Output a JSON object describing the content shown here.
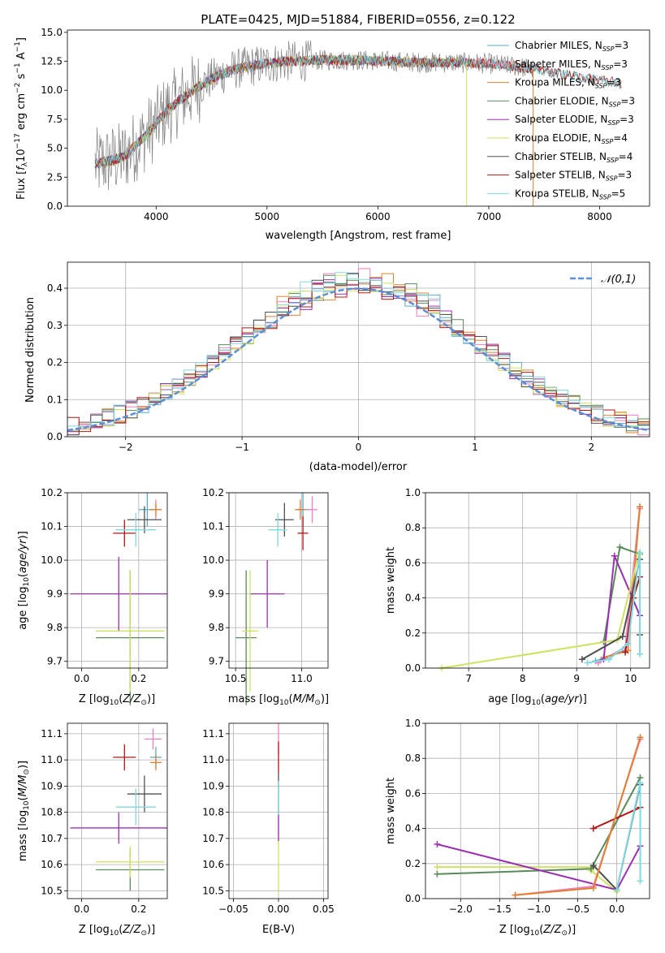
{
  "colors": {
    "chabrier_miles": "#5fa8c8",
    "salpeter_miles": "#f080c0",
    "kroupa_miles": "#e08030",
    "chabrier_elodie": "#5a8a5a",
    "salpeter_elodie": "#9a30b0",
    "kroupa_elodie": "#d0e060",
    "chabrier_stelib": "#505050",
    "salpeter_stelib": "#b01818",
    "kroupa_stelib": "#80d8e0",
    "normal": "#5a8fd8"
  },
  "legend_ssp": [
    {
      "label": "Chabrier MILES, N",
      "sub": "SSP",
      "suffix": "=3",
      "color": "chabrier_miles"
    },
    {
      "label": "Salpeter MILES, N",
      "sub": "SSP",
      "suffix": "=3",
      "color": "salpeter_miles"
    },
    {
      "label": "Kroupa MILES, N",
      "sub": "SSP",
      "suffix": "=3",
      "color": "kroupa_miles"
    },
    {
      "label": "Chabrier ELODIE, N",
      "sub": "SSP",
      "suffix": "=3",
      "color": "chabrier_elodie"
    },
    {
      "label": "Salpeter ELODIE, N",
      "sub": "SSP",
      "suffix": "=3",
      "color": "salpeter_elodie"
    },
    {
      "label": "Kroupa ELODIE, N",
      "sub": "SSP",
      "suffix": "=4",
      "color": "kroupa_elodie"
    },
    {
      "label": "Chabrier STELIB, N",
      "sub": "SSP",
      "suffix": "=4",
      "color": "chabrier_stelib"
    },
    {
      "label": "Salpeter STELIB, N",
      "sub": "SSP",
      "suffix": "=3",
      "color": "salpeter_stelib"
    },
    {
      "label": "Kroupa STELIB, N",
      "sub": "SSP",
      "suffix": "=5",
      "color": "kroupa_stelib"
    }
  ],
  "chart_data": [
    {
      "id": "spectrum",
      "type": "line",
      "title": "PLATE=0425, MJD=51884, FIBERID=0556, z=0.122",
      "xlabel": "wavelength [Angstrom, rest frame]",
      "ylabel": "Flux [fλ10⁻¹⁷ erg cm⁻² s⁻¹ A⁻¹]",
      "xlim": [
        3200,
        8450
      ],
      "ylim": [
        0,
        15.2
      ],
      "xticks": [
        4000,
        5000,
        6000,
        7000,
        8000
      ],
      "yticks": [
        0,
        2.5,
        5.0,
        7.5,
        10.0,
        12.5,
        15.0
      ],
      "continuum_x": [
        3450,
        3700,
        3900,
        4100,
        4300,
        4500,
        4700,
        5000,
        5200,
        5500,
        5800,
        6100,
        6400,
        6700,
        7000,
        7300,
        7600,
        7900,
        8200
      ],
      "continuum_y": [
        3.6,
        4.2,
        6.0,
        8.3,
        9.8,
        11.0,
        11.8,
        12.3,
        12.5,
        12.6,
        12.6,
        12.5,
        12.4,
        12.4,
        12.3,
        12.0,
        11.5,
        11.0,
        10.6
      ]
    },
    {
      "id": "residuals",
      "type": "histogram",
      "xlabel": "(data-model)/error",
      "ylabel": "Normed distribution",
      "xlim": [
        -2.5,
        2.5
      ],
      "ylim": [
        0,
        0.47
      ],
      "xticks": [
        -2,
        -1,
        0,
        1,
        2
      ],
      "yticks": [
        0.0,
        0.1,
        0.2,
        0.3,
        0.4
      ],
      "legend": "𝒩(0,1)",
      "bin_width": 0.1
    },
    {
      "id": "age_vs_Z",
      "type": "scatter",
      "xlabel": "Z [log10(Z/Z⊙)]",
      "ylabel": "age  [log10(age/yr)]",
      "xlim": [
        -0.05,
        0.3
      ],
      "ylim": [
        9.68,
        10.2
      ],
      "xticks": [
        0.0,
        0.2
      ],
      "yticks": [
        9.7,
        9.8,
        9.9,
        10.0,
        10.1,
        10.2
      ],
      "points": [
        {
          "s": "chabrier_miles",
          "x": 0.23,
          "y": 10.15,
          "ex": 0.03,
          "ey": 0.05
        },
        {
          "s": "salpeter_miles",
          "x": 0.26,
          "y": 10.15,
          "ex": 0.02,
          "ey": 0.03
        },
        {
          "s": "kroupa_miles",
          "x": 0.26,
          "y": 10.15,
          "ex": 0.02,
          "ey": 0.02
        },
        {
          "s": "chabrier_elodie",
          "x": 0.17,
          "y": 9.77,
          "ex": 0.12,
          "ey": 0.2
        },
        {
          "s": "salpeter_elodie",
          "x": 0.13,
          "y": 9.9,
          "ex": 0.17,
          "ey": 0.11
        },
        {
          "s": "kroupa_elodie",
          "x": 0.17,
          "y": 9.79,
          "ex": 0.12,
          "ey": 0.18
        },
        {
          "s": "chabrier_stelib",
          "x": 0.22,
          "y": 10.12,
          "ex": 0.06,
          "ey": 0.04
        },
        {
          "s": "salpeter_stelib",
          "x": 0.15,
          "y": 10.08,
          "ex": 0.04,
          "ey": 0.04
        },
        {
          "s": "kroupa_stelib",
          "x": 0.19,
          "y": 10.09,
          "ex": 0.07,
          "ey": 0.05
        }
      ]
    },
    {
      "id": "age_vs_mass",
      "type": "scatter",
      "xlabel": "mass [log10(M/M⊙)]",
      "xlim": [
        10.45,
        11.2
      ],
      "ylim": [
        9.68,
        10.2
      ],
      "xticks": [
        10.5,
        11.0
      ],
      "yticks": [
        9.7,
        9.8,
        9.9,
        10.0,
        10.1,
        10.2
      ],
      "points": [
        {
          "s": "chabrier_miles",
          "x": 11.01,
          "y": 10.15,
          "ex": 0.05,
          "ey": 0.05
        },
        {
          "s": "salpeter_miles",
          "x": 11.08,
          "y": 10.15,
          "ex": 0.04,
          "ey": 0.04
        },
        {
          "s": "kroupa_miles",
          "x": 10.99,
          "y": 10.15,
          "ex": 0.04,
          "ey": 0.03
        },
        {
          "s": "chabrier_elodie",
          "x": 10.58,
          "y": 9.77,
          "ex": 0.08,
          "ey": 0.2
        },
        {
          "s": "salpeter_elodie",
          "x": 10.74,
          "y": 9.9,
          "ex": 0.13,
          "ey": 0.1
        },
        {
          "s": "kroupa_elodie",
          "x": 10.61,
          "y": 9.79,
          "ex": 0.06,
          "ey": 0.18
        },
        {
          "s": "chabrier_stelib",
          "x": 10.87,
          "y": 10.12,
          "ex": 0.07,
          "ey": 0.05
        },
        {
          "s": "salpeter_stelib",
          "x": 11.01,
          "y": 10.08,
          "ex": 0.04,
          "ey": 0.05
        },
        {
          "s": "kroupa_stelib",
          "x": 10.82,
          "y": 10.09,
          "ex": 0.07,
          "ey": 0.05
        }
      ]
    },
    {
      "id": "weight_vs_age",
      "type": "line",
      "xlabel": "age  [log10(age/yr)]",
      "ylabel": "mass weight",
      "xlim": [
        6.2,
        10.35
      ],
      "ylim": [
        0,
        1.0
      ],
      "xticks": [
        7,
        8,
        9,
        10
      ],
      "yticks": [
        0.0,
        0.2,
        0.4,
        0.6,
        0.8,
        1.0
      ],
      "series": [
        {
          "s": "chabrier_miles",
          "x": [
            9.35,
            9.9,
            10.17
          ],
          "y": [
            0.04,
            0.1,
            0.92
          ]
        },
        {
          "s": "salpeter_miles",
          "x": [
            9.4,
            9.9,
            10.17
          ],
          "y": [
            0.03,
            0.12,
            0.91
          ]
        },
        {
          "s": "kroupa_miles",
          "x": [
            9.5,
            9.95,
            10.17
          ],
          "y": [
            0.06,
            0.1,
            0.92
          ]
        },
        {
          "s": "chabrier_elodie",
          "x": [
            9.5,
            9.8,
            10.17
          ],
          "y": [
            0.15,
            0.69,
            0.65
          ]
        },
        {
          "s": "salpeter_elodie",
          "x": [
            9.5,
            9.7,
            10.17
          ],
          "y": [
            0.05,
            0.64,
            0.3
          ]
        },
        {
          "s": "kroupa_elodie",
          "x": [
            6.5,
            9.75,
            10.15
          ],
          "y": [
            0.0,
            0.16,
            0.65
          ]
        },
        {
          "s": "chabrier_stelib",
          "x": [
            9.1,
            9.85,
            10.17,
            10.17
          ],
          "y": [
            0.05,
            0.18,
            0.62,
            0.19
          ]
        },
        {
          "s": "salpeter_stelib",
          "x": [
            9.9,
            10.05,
            10.17
          ],
          "y": [
            0.09,
            0.4,
            0.52
          ]
        },
        {
          "s": "kroupa_stelib",
          "x": [
            9.2,
            9.6,
            9.95,
            10.17,
            10.17
          ],
          "y": [
            0.03,
            0.05,
            0.14,
            0.66,
            0.08
          ]
        }
      ]
    },
    {
      "id": "mass_vs_Z",
      "type": "scatter",
      "xlabel": "Z [log10(Z/Z⊙)]",
      "ylabel": "mass [log10(M/M⊙)]",
      "xlim": [
        -0.05,
        0.3
      ],
      "ylim": [
        10.47,
        11.14
      ],
      "xticks": [
        0.0,
        0.2
      ],
      "yticks": [
        10.5,
        10.6,
        10.7,
        10.8,
        10.9,
        11.0,
        11.1
      ],
      "points": [
        {
          "s": "chabrier_miles",
          "x": 0.26,
          "y": 11.01,
          "ex": 0.02,
          "ey": 0.04
        },
        {
          "s": "salpeter_miles",
          "x": 0.25,
          "y": 11.08,
          "ex": 0.03,
          "ey": 0.04
        },
        {
          "s": "kroupa_miles",
          "x": 0.26,
          "y": 10.99,
          "ex": 0.02,
          "ey": 0.03
        },
        {
          "s": "chabrier_elodie",
          "x": 0.17,
          "y": 10.58,
          "ex": 0.12,
          "ey": 0.08
        },
        {
          "s": "salpeter_elodie",
          "x": 0.13,
          "y": 10.74,
          "ex": 0.17,
          "ey": 0.06
        },
        {
          "s": "kroupa_elodie",
          "x": 0.17,
          "y": 10.61,
          "ex": 0.12,
          "ey": 0.06
        },
        {
          "s": "chabrier_stelib",
          "x": 0.22,
          "y": 10.87,
          "ex": 0.06,
          "ey": 0.07
        },
        {
          "s": "salpeter_stelib",
          "x": 0.15,
          "y": 11.01,
          "ex": 0.04,
          "ey": 0.05
        },
        {
          "s": "kroupa_stelib",
          "x": 0.19,
          "y": 10.82,
          "ex": 0.07,
          "ey": 0.07
        }
      ]
    },
    {
      "id": "mass_vs_ebv",
      "type": "scatter",
      "xlabel": "E(B-V)",
      "xlim": [
        -0.055,
        0.055
      ],
      "ylim": [
        10.47,
        11.14
      ],
      "xticks": [
        -0.05,
        0.0,
        0.05
      ],
      "yticks": [
        10.5,
        10.6,
        10.7,
        10.8,
        10.9,
        11.0,
        11.1
      ],
      "points": [
        {
          "s": "salpeter_miles",
          "x": 0.0,
          "y": 11.08,
          "ex": 0.0,
          "ey": 0.06
        },
        {
          "s": "chabrier_stelib",
          "x": 0.0,
          "y": 10.87,
          "ex": 0.0,
          "ey": 0.08
        },
        {
          "s": "salpeter_stelib",
          "x": 0.0,
          "y": 11.01,
          "ex": 0.0,
          "ey": 0.06
        },
        {
          "s": "kroupa_stelib",
          "x": 0.0,
          "y": 10.82,
          "ex": 0.0,
          "ey": 0.1
        },
        {
          "s": "kroupa_elodie",
          "x": 0.0,
          "y": 10.61,
          "ex": 0.0,
          "ey": 0.12
        },
        {
          "s": "salpeter_elodie",
          "x": 0.0,
          "y": 10.74,
          "ex": 0.0,
          "ey": 0.05
        }
      ]
    },
    {
      "id": "weight_vs_Z",
      "type": "line",
      "xlabel": "Z [log10(Z/Z⊙)]",
      "ylabel": "mass weight",
      "xlim": [
        -2.45,
        0.42
      ],
      "ylim": [
        0,
        1.0
      ],
      "xticks": [
        -2.0,
        -1.5,
        -1.0,
        -0.5,
        0.0
      ],
      "yticks": [
        0.0,
        0.2,
        0.4,
        0.6,
        0.8,
        1.0
      ],
      "series": [
        {
          "s": "kroupa_elodie",
          "x": [
            -2.3,
            -0.3,
            -0.33,
            0.0
          ],
          "y": [
            0.18,
            0.18,
            0.16,
            0.04
          ]
        },
        {
          "s": "chabrier_elodie",
          "x": [
            -2.3,
            -0.33,
            0.3
          ],
          "y": [
            0.14,
            0.17,
            0.69
          ]
        },
        {
          "s": "salpeter_elodie",
          "x": [
            -2.3,
            0.0,
            0.3
          ],
          "y": [
            0.31,
            0.05,
            0.3
          ]
        },
        {
          "s": "salpeter_stelib",
          "x": [
            -0.3,
            0.3
          ],
          "y": [
            0.4,
            0.52
          ]
        },
        {
          "s": "chabrier_stelib",
          "x": [
            -0.3,
            0.0,
            0.3
          ],
          "y": [
            0.19,
            0.05,
            0.65
          ]
        },
        {
          "s": "kroupa_stelib",
          "x": [
            0.0,
            0.3,
            0.3
          ],
          "y": [
            0.05,
            0.66,
            0.1
          ]
        },
        {
          "s": "salpeter_miles",
          "x": [
            -1.3,
            -0.3,
            0.3
          ],
          "y": [
            0.02,
            0.07,
            0.91
          ]
        },
        {
          "s": "kroupa_miles",
          "x": [
            -1.3,
            -0.3,
            0.3
          ],
          "y": [
            0.02,
            0.06,
            0.92
          ]
        }
      ]
    }
  ]
}
